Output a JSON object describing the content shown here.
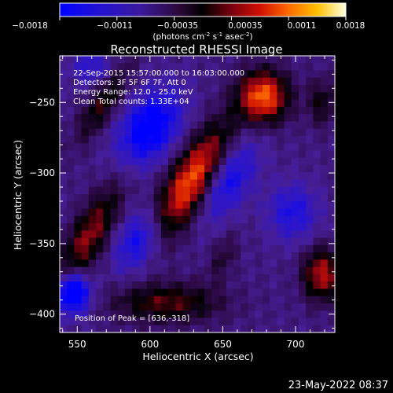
{
  "chart_data": {
    "type": "heatmap",
    "title": "Reconstructed RHESSI Image",
    "xlabel": "Heliocentric X (arcsec)",
    "ylabel": "Heliocentric Y (arcsec)",
    "xlim": [
      538,
      727
    ],
    "ylim": [
      -413,
      -217
    ],
    "xticks": [
      550,
      600,
      650,
      700
    ],
    "yticks": [
      -250,
      -300,
      -350,
      -400
    ],
    "colorbar": {
      "ticks": [
        "-0.0018",
        "-0.0011",
        "-0.00035",
        "0.00035",
        "0.0011",
        "0.0018"
      ],
      "range": [
        -0.0018,
        0.0018
      ],
      "units_prefix": "(photons cm",
      "units_sup1": "-2",
      "units_mid": " s",
      "units_sup2": "-1",
      "units_mid2": " asec",
      "units_sup3": "-2",
      "units_suffix": ")"
    },
    "annotations": [
      "22-Sep-2015 15:57:00.000 to 16:03:00.000",
      "Detectors: 3F 5F 6F 7F, Att 0",
      "Energy Range: 12.0 - 25.0 keV",
      "Clean     Total counts: 1.33E+04"
    ],
    "peak_label": "Position of Peak = [636,-318]",
    "peak": [
      636,
      -318
    ],
    "sources": [
      {
        "x": 630,
        "y": -305,
        "amp": 1.0,
        "sx": 11,
        "sy": 30,
        "angle": 30
      },
      {
        "x": 678,
        "y": -246,
        "amp": 0.95,
        "sx": 12,
        "sy": 13,
        "angle": 0
      },
      {
        "x": 558,
        "y": -345,
        "amp": 0.6,
        "sx": 9,
        "sy": 28,
        "angle": 28
      },
      {
        "x": 718,
        "y": -372,
        "amp": 0.7,
        "sx": 9,
        "sy": 13,
        "angle": 0
      },
      {
        "x": 612,
        "y": -392,
        "amp": 0.5,
        "sx": 26,
        "sy": 10,
        "angle": 0
      },
      {
        "x": 568,
        "y": -250,
        "amp": 0.45,
        "sx": 7,
        "sy": 22,
        "angle": 30
      },
      {
        "x": 718,
        "y": -250,
        "amp": 0.35,
        "sx": 7,
        "sy": 12,
        "angle": 0
      },
      {
        "x": 650,
        "y": -360,
        "amp": 0.25,
        "sx": 6,
        "sy": 12,
        "angle": 20
      },
      {
        "x": 600,
        "y": -268,
        "amp": -0.75,
        "sx": 13,
        "sy": 20,
        "angle": 30
      },
      {
        "x": 652,
        "y": -305,
        "amp": -0.6,
        "sx": 11,
        "sy": 22,
        "angle": 30
      },
      {
        "x": 547,
        "y": -385,
        "amp": -1.0,
        "sx": 8,
        "sy": 10,
        "angle": 0
      },
      {
        "x": 592,
        "y": -348,
        "amp": -0.55,
        "sx": 10,
        "sy": 16,
        "angle": 25
      },
      {
        "x": 698,
        "y": -328,
        "amp": -0.45,
        "sx": 12,
        "sy": 14,
        "angle": 0
      },
      {
        "x": 560,
        "y": -225,
        "amp": -0.35,
        "sx": 10,
        "sy": 10,
        "angle": 0
      }
    ]
  },
  "footer": {
    "timestamp": "23-May-2022 08:37"
  }
}
